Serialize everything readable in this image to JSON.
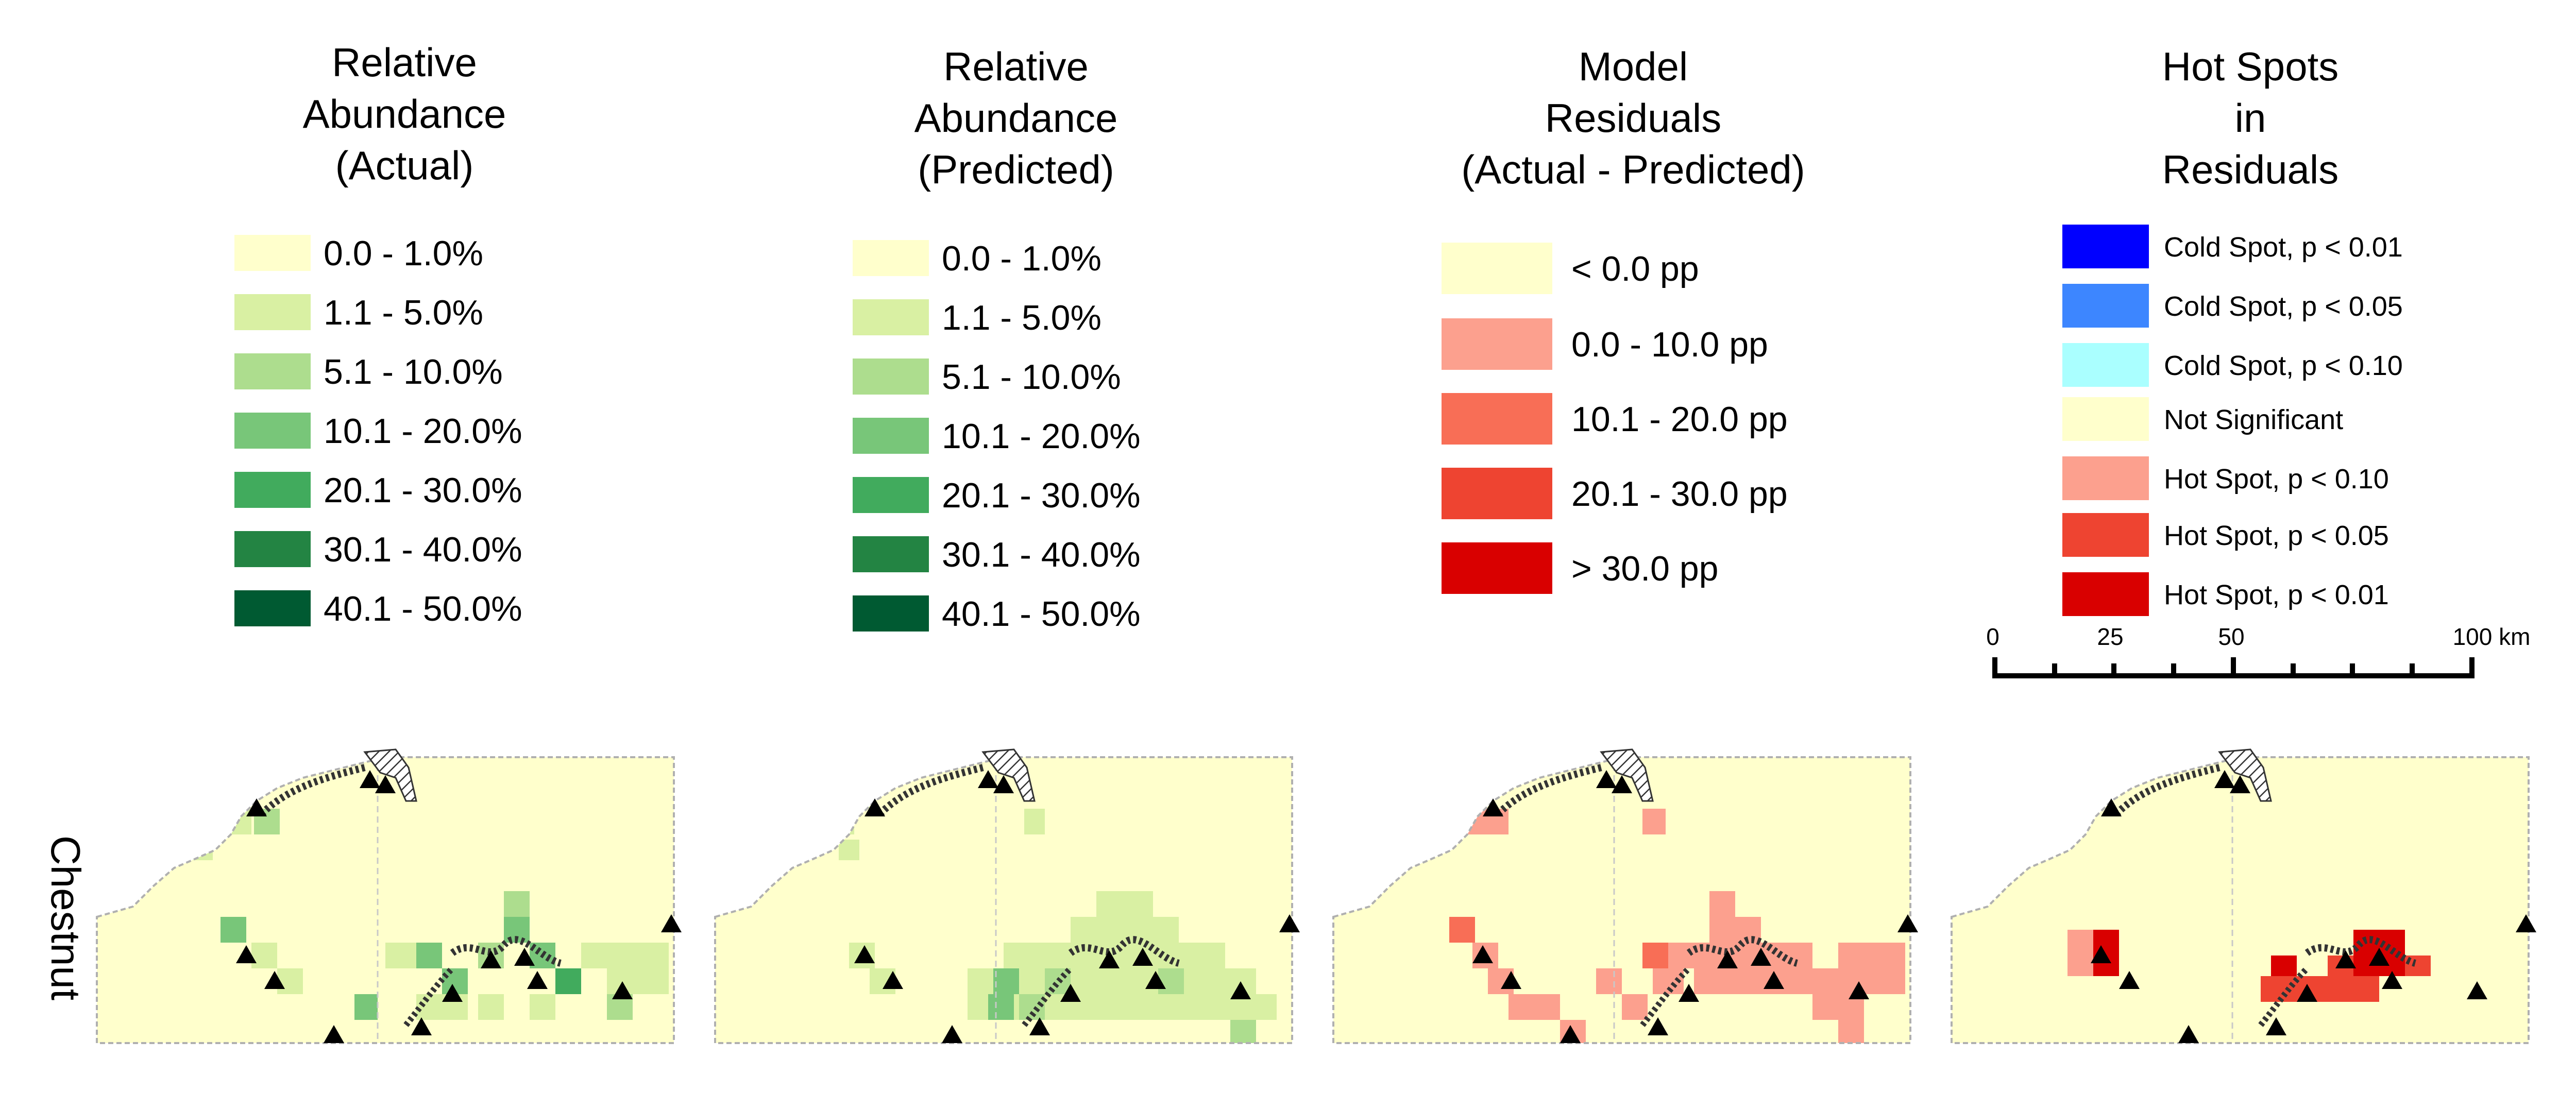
{
  "row_label": "Chestnut",
  "colors": {
    "abundance": [
      "#ffffcc",
      "#d9f0a3",
      "#addd8e",
      "#78c679",
      "#41ab5d",
      "#238443",
      "#005a32"
    ],
    "residuals": [
      "#ffffcc",
      "#fca08e",
      "#f86e56",
      "#ee4431",
      "#d90000"
    ],
    "hotspots": [
      "#0000ff",
      "#3d86ff",
      "#aaffff",
      "#ffffcc",
      "#fca08e",
      "#ee4431",
      "#d90000"
    ],
    "outline": "#b0b0b0",
    "marker": "#000000"
  },
  "panels": [
    {
      "id": "actual",
      "title": [
        "Relative",
        "Abundance",
        "(Actual)"
      ],
      "legend": [
        "0.0 - 1.0%",
        "1.1 - 5.0%",
        "5.1 - 10.0%",
        "10.1 - 20.0%",
        "20.1 - 30.0%",
        "30.1 - 40.0%",
        "40.1 - 50.0%"
      ]
    },
    {
      "id": "predicted",
      "title": [
        "Relative",
        "Abundance",
        "(Predicted)"
      ],
      "legend": [
        "0.0 - 1.0%",
        "1.1 - 5.0%",
        "5.1 - 10.0%",
        "10.1 - 20.0%",
        "20.1 - 30.0%",
        "30.1 - 40.0%",
        "40.1 - 50.0%"
      ]
    },
    {
      "id": "residuals",
      "title": [
        "Model",
        "Residuals",
        "(Actual - Predicted)"
      ],
      "legend": [
        "< 0.0 pp",
        "0.0 - 10.0 pp",
        "10.1 - 20.0 pp",
        "20.1 - 30.0 pp",
        "> 30.0 pp"
      ]
    },
    {
      "id": "hotspots",
      "title": [
        "Hot Spots",
        "in",
        "Residuals"
      ],
      "legend": [
        "Cold Spot, p < 0.01",
        "Cold Spot, p < 0.05",
        "Cold Spot, p < 0.10",
        "Not Significant",
        "Hot Spot, p < 0.10",
        "Hot Spot, p < 0.05",
        "Hot Spot, p < 0.01"
      ]
    }
  ],
  "scale_bar": {
    "labels": [
      "0",
      "25",
      "50",
      "100 km"
    ],
    "values_km": [
      0,
      25,
      50,
      100
    ]
  }
}
